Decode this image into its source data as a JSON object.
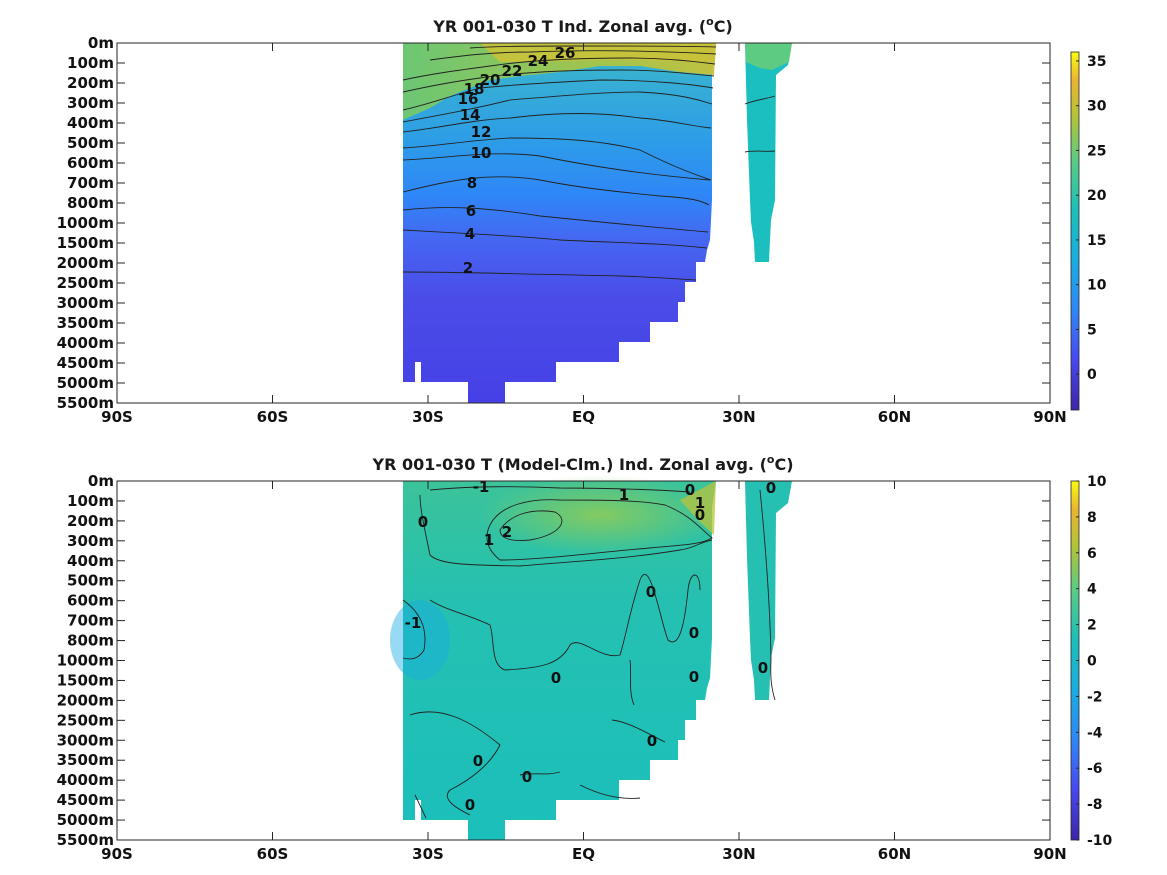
{
  "chart_data": [
    {
      "type": "heatmap",
      "title": "YR 001-030 T Ind. Zonal avg. (",
      "title_unit_sup": "o",
      "title_unit_tail": "C)",
      "xticks": [
        "90S",
        "60S",
        "30S",
        "EQ",
        "30N",
        "60N",
        "90N"
      ],
      "x_values": [
        -90,
        -60,
        -30,
        0,
        30,
        60,
        90
      ],
      "yticks": [
        "0m",
        "100m",
        "200m",
        "300m",
        "400m",
        "500m",
        "600m",
        "700m",
        "800m",
        "1000m",
        "1500m",
        "2000m",
        "2500m",
        "3000m",
        "3500m",
        "4000m",
        "4500m",
        "5000m",
        "5500m"
      ],
      "colorbar": {
        "ticks": [
          "35",
          "30",
          "25",
          "20",
          "15",
          "10",
          "5",
          "0"
        ],
        "tick_values": [
          35,
          30,
          25,
          20,
          15,
          10,
          5,
          0
        ],
        "range": [
          -4,
          36
        ]
      },
      "contour_labels": [
        "26",
        "24",
        "22",
        "20",
        "18",
        "16",
        "14",
        "12",
        "10",
        "8",
        "6",
        "4",
        "2"
      ],
      "colormap": "parula"
    },
    {
      "type": "heatmap",
      "title": "YR 001-030 T (Model-Clm.) Ind. Zonal avg. (",
      "title_unit_sup": "o",
      "title_unit_tail": "C)",
      "xticks": [
        "90S",
        "60S",
        "30S",
        "EQ",
        "30N",
        "60N",
        "90N"
      ],
      "x_values": [
        -90,
        -60,
        -30,
        0,
        30,
        60,
        90
      ],
      "yticks": [
        "0m",
        "100m",
        "200m",
        "300m",
        "400m",
        "500m",
        "600m",
        "700m",
        "800m",
        "1000m",
        "1500m",
        "2000m",
        "2500m",
        "3000m",
        "3500m",
        "4000m",
        "4500m",
        "5000m",
        "5500m"
      ],
      "colorbar": {
        "ticks": [
          "10",
          "8",
          "6",
          "4",
          "2",
          "0",
          "-2",
          "-4",
          "-6",
          "-8",
          "-10"
        ],
        "tick_values": [
          10,
          8,
          6,
          4,
          2,
          0,
          -2,
          -4,
          -6,
          -8,
          -10
        ],
        "range": [
          -10,
          10
        ]
      },
      "contour_labels": [
        "-1",
        "1",
        "0",
        "1",
        "2",
        "1",
        "0",
        "-1",
        "0",
        "0",
        "0",
        "0",
        "0",
        "0",
        "0",
        "0",
        "0",
        "0",
        "0"
      ],
      "colormap": "parula"
    }
  ]
}
